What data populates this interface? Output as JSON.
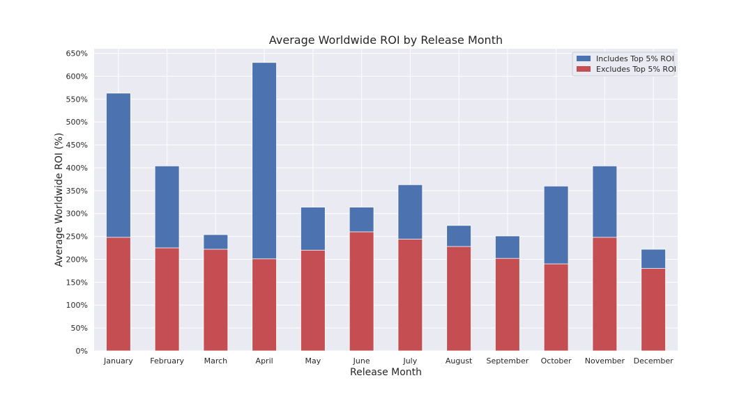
{
  "chart_data": {
    "type": "bar",
    "stacked": false,
    "overlay": true,
    "title": "Average Worldwide ROI by Release Month",
    "xlabel": "Release Month",
    "ylabel": "Average Worldwide ROI (%)",
    "ylim": [
      0,
      660
    ],
    "y_ticks": [
      0,
      50,
      100,
      150,
      200,
      250,
      300,
      350,
      400,
      450,
      500,
      550,
      600,
      650
    ],
    "y_tick_labels": [
      "0%",
      "50%",
      "100%",
      "150%",
      "200%",
      "250%",
      "300%",
      "350%",
      "400%",
      "450%",
      "500%",
      "550%",
      "600%",
      "650%"
    ],
    "categories": [
      "January",
      "February",
      "March",
      "April",
      "May",
      "June",
      "July",
      "August",
      "September",
      "October",
      "November",
      "December"
    ],
    "series": [
      {
        "name": "Includes Top 5% ROI",
        "color": "#4c72b0",
        "values": [
          563,
          404,
          254,
          630,
          314,
          314,
          363,
          274,
          251,
          360,
          404,
          222
        ]
      },
      {
        "name": "Excludes Top 5% ROI",
        "color": "#c44e52",
        "values": [
          248,
          225,
          222,
          201,
          220,
          260,
          244,
          228,
          202,
          190,
          248,
          180
        ]
      }
    ],
    "grid": true,
    "legend_position": "top-right",
    "plot_background": "#eaeaf2"
  }
}
